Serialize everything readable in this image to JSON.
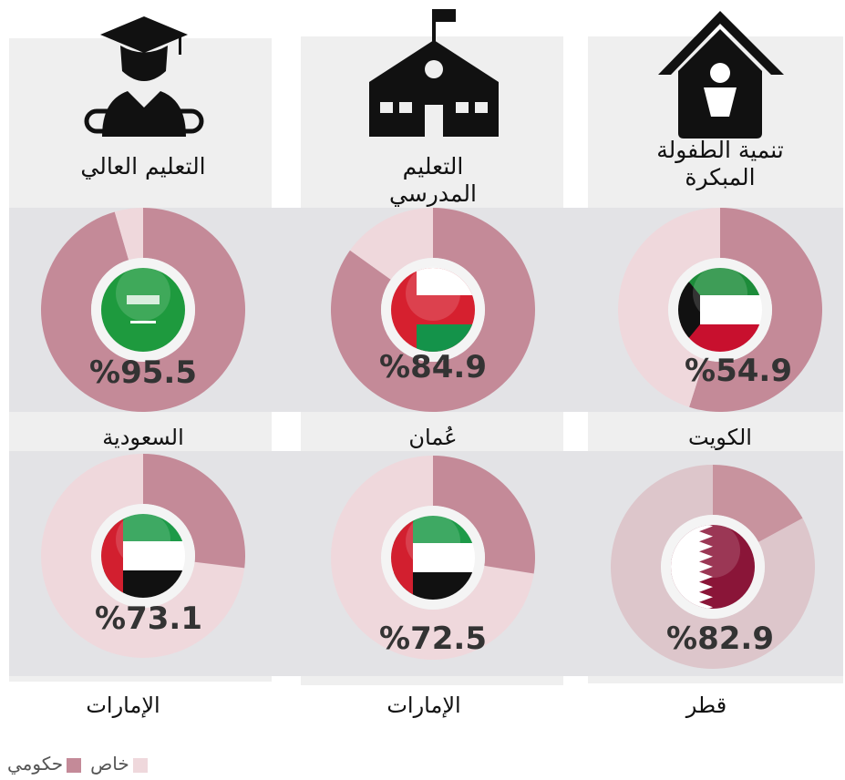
{
  "columns": [
    "تنمية الطفولة المبكرة",
    "التعليم المدرسي",
    "التعليم العالي"
  ],
  "legend": [
    {
      "name": "حكومي",
      "color": "#c48a98"
    },
    {
      "name": "خاص",
      "color": "#efd8dc"
    }
  ],
  "chart_data": [
    {
      "type": "donut",
      "title": "الكويت",
      "values": [
        54.9
      ],
      "value_labels": [
        "%54.9"
      ],
      "colors": [
        "#c48a98",
        "#efd8dc"
      ]
    },
    {
      "type": "donut",
      "title": "عُمان",
      "values": [
        84.9
      ],
      "value_labels": [
        "%84.9"
      ],
      "colors": [
        "#c48a98",
        "#efd8dc"
      ]
    },
    {
      "type": "donut",
      "title": "السعودية",
      "values": [
        95.5
      ],
      "value_labels": [
        "%95.5"
      ],
      "colors": [
        "#c48a98",
        "#efd8dc"
      ]
    },
    {
      "type": "donut",
      "title": "قطر",
      "values": [
        82.9
      ],
      "value_labels": [
        "%82.9"
      ],
      "colors": [
        "#ddc6cb",
        "#c8939e"
      ]
    },
    {
      "type": "donut",
      "title": "الإمارات",
      "values": [
        72.5
      ],
      "value_labels": [
        "%72.5"
      ],
      "colors": [
        "#efd8dc",
        "#c48a98"
      ]
    },
    {
      "type": "donut",
      "title": "الإمارات",
      "values": [
        73.1
      ],
      "value_labels": [
        "%73.1"
      ],
      "colors": [
        "#efd8dc",
        "#c48a98"
      ]
    }
  ]
}
